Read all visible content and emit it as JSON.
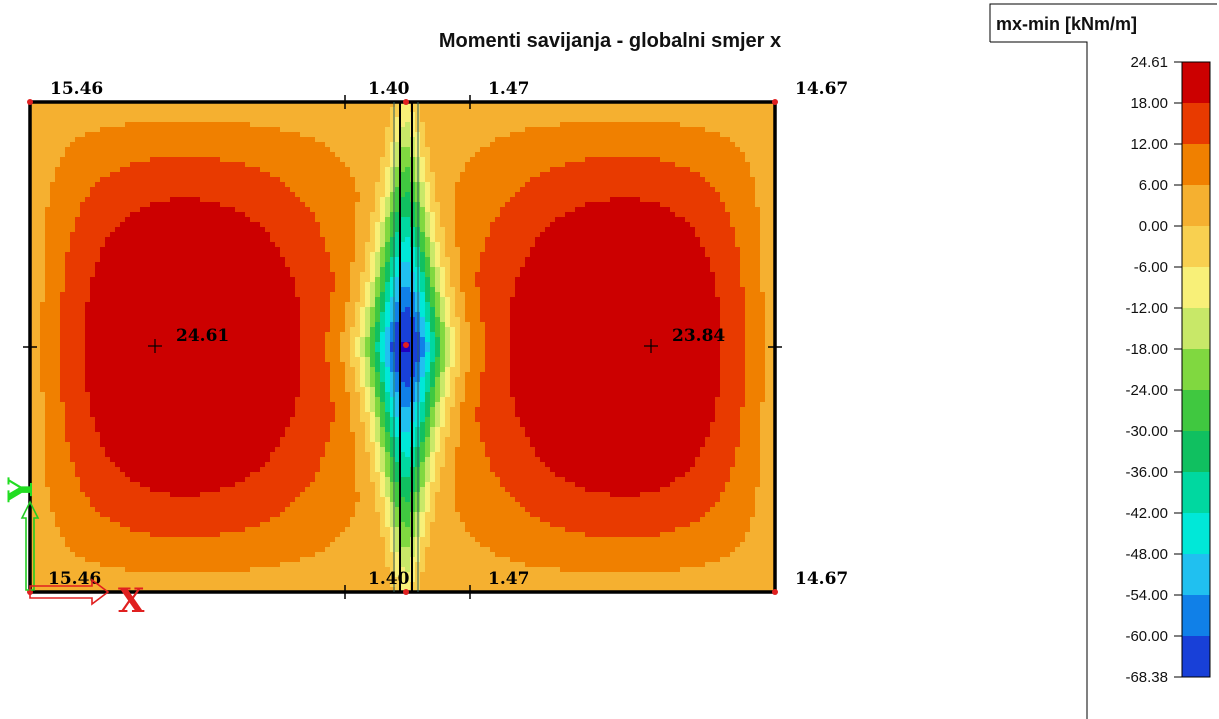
{
  "title": "Momenti savijanja - globalni smjer x",
  "legend": {
    "title": "mx-min [kNm/m]",
    "levels": [
      "24.61",
      "18.00",
      "12.00",
      "6.00",
      "0.00",
      "-6.00",
      "-12.00",
      "-18.00",
      "-24.00",
      "-30.00",
      "-36.00",
      "-42.00",
      "-48.00",
      "-54.00",
      "-60.00",
      "-68.38"
    ],
    "colors": [
      "#cc0000",
      "#e83a00",
      "#f08000",
      "#f5b030",
      "#f8d050",
      "#f8f078",
      "#c8e868",
      "#80d840",
      "#40c840",
      "#10c060",
      "#00d8a0",
      "#00e8d8",
      "#20c0f0",
      "#1080e8",
      "#1840d8",
      "#2000c0"
    ]
  },
  "labels": {
    "top_left": "15.46",
    "top_mid_left": "1.40",
    "top_mid_right": "1.47",
    "top_right": "14.67",
    "bottom_left": "15.46",
    "bottom_mid_left": "1.40",
    "bottom_mid_right": "1.47",
    "bottom_right": "14.67",
    "max_left": "24.61",
    "max_right": "23.84"
  },
  "axis": {
    "x": "X",
    "y": "Y"
  },
  "colors": {
    "border": "#000000",
    "frame": "#000000"
  }
}
